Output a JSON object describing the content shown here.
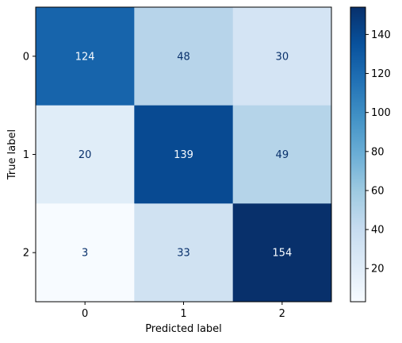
{
  "chart_data": {
    "type": "heatmap",
    "title": "",
    "xlabel": "Predicted label",
    "ylabel": "True label",
    "x_categories": [
      "0",
      "1",
      "2"
    ],
    "y_categories": [
      "0",
      "1",
      "2"
    ],
    "values": [
      [
        124,
        48,
        30
      ],
      [
        20,
        139,
        49
      ],
      [
        3,
        33,
        154
      ]
    ],
    "colormap": "Blues",
    "color_range": [
      3,
      154
    ],
    "colorbar_ticks": [
      "20",
      "40",
      "60",
      "80",
      "100",
      "120",
      "140"
    ],
    "colors": {
      "low": "#f7fbff",
      "high": "#08306b",
      "text_light": "#f7fbff",
      "text_dark": "#08306b"
    }
  }
}
